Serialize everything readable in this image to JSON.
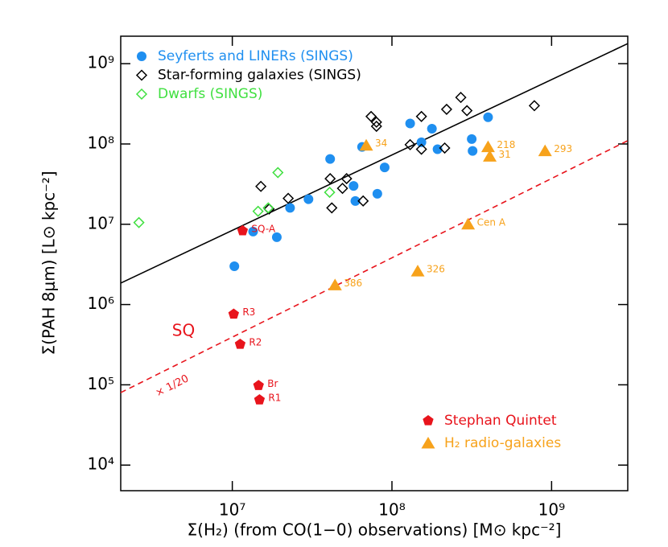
{
  "chart_data": {
    "type": "scatter",
    "x_label": "Σ(H₂) (from CO(1−0) observations) [M⊙ kpc⁻²]",
    "y_label": "Σ(PAH 8μm) [L⊙ kpc⁻²]",
    "xscale": "log",
    "yscale": "log",
    "xlim": [
      2000000,
      3000000000
    ],
    "ylim": [
      4800,
      2200000000
    ],
    "xticks": [
      {
        "value": 10000000,
        "label": "10⁷"
      },
      {
        "value": 100000000,
        "label": "10⁸"
      },
      {
        "value": 1000000000,
        "label": "10⁹"
      }
    ],
    "yticks": [
      {
        "value": 10000,
        "label": "10⁴"
      },
      {
        "value": 100000,
        "label": "10⁵"
      },
      {
        "value": 1000000,
        "label": "10⁶"
      },
      {
        "value": 10000000,
        "label": "10⁷"
      },
      {
        "value": 100000000,
        "label": "10⁸"
      },
      {
        "value": 1000000000,
        "label": "10⁹"
      }
    ],
    "series": [
      {
        "name": "Seyferts and LINERs (SINGS)",
        "color": "#1f8ff0",
        "marker": "circle",
        "filled": true,
        "legend": "upper left",
        "x": [
          10300000,
          13500000,
          19000000,
          23000000,
          30000000,
          41000000,
          57500000,
          59000000,
          65000000,
          81000000,
          90000000,
          130000000,
          153000000,
          178000000,
          193000000,
          316000000,
          320000000,
          400000000
        ],
        "y": [
          3000000,
          8100000,
          6900000,
          16000000,
          20500000,
          65000000,
          30000000,
          19500000,
          92000000,
          24000000,
          51000000,
          180000000,
          105000000,
          155000000,
          86000000,
          115000000,
          82000000,
          215000000
        ]
      },
      {
        "name": "Star-forming galaxies (SINGS)",
        "color": "#000000",
        "marker": "diamond",
        "filled": false,
        "legend": "upper left",
        "x": [
          15100000,
          17000000,
          22400000,
          41000000,
          42000000,
          49000000,
          52000000,
          66000000,
          74000000,
          80000000,
          80000000,
          130000000,
          153000000,
          153000000,
          214000000,
          220000000,
          270000000,
          295000000,
          780000000
        ],
        "y": [
          29600000,
          15500000,
          21000000,
          37000000,
          16000000,
          28000000,
          37000000,
          19500000,
          220000000,
          187000000,
          166000000,
          98000000,
          220000000,
          86000000,
          89000000,
          270000000,
          380000000,
          260000000,
          300000000
        ]
      },
      {
        "name": "Dwarfs (SINGS)",
        "color": "#40e040",
        "marker": "diamond",
        "filled": false,
        "legend": "upper left",
        "x": [
          2600000,
          14500000,
          16800000,
          19300000,
          40700000
        ],
        "y": [
          10500000,
          14500000,
          16000000,
          44000000,
          25000000
        ]
      },
      {
        "name": "Stephan Quintet",
        "color": "#e8141c",
        "marker": "pentagon",
        "filled": true,
        "legend": "lower right",
        "x": [
          11600000,
          10200000,
          11200000,
          14600000,
          14800000
        ],
        "y": [
          8300000,
          760000,
          320000,
          98000,
          65000
        ],
        "point_labels": [
          "SQ-A",
          "R3",
          "R2",
          "Br",
          "R1"
        ]
      },
      {
        "name": "H₂ radio-galaxies",
        "color": "#f7a21b",
        "marker": "triangle",
        "filled": true,
        "legend": "lower right",
        "x": [
          69000000,
          400000000,
          410000000,
          910000000,
          300000000,
          145000000,
          44000000
        ],
        "y": [
          96000000,
          92000000,
          70000000,
          82000000,
          10000000,
          2600000,
          1750000
        ],
        "point_labels": [
          "34",
          "218",
          "31",
          "293",
          "Cen A",
          "326",
          "386"
        ]
      }
    ],
    "lines": [
      {
        "color": "#000000",
        "style": "solid",
        "x": [
          2000000,
          3000000000
        ],
        "y": [
          1850000,
          1780000000
        ]
      },
      {
        "color": "#e8141c",
        "style": "dashed",
        "x": [
          2000000,
          3000000000
        ],
        "y": [
          80000,
          110000000
        ],
        "label": "× 1/20"
      }
    ],
    "annotations": [
      {
        "text": "SQ",
        "color": "#e8141c"
      }
    ]
  }
}
